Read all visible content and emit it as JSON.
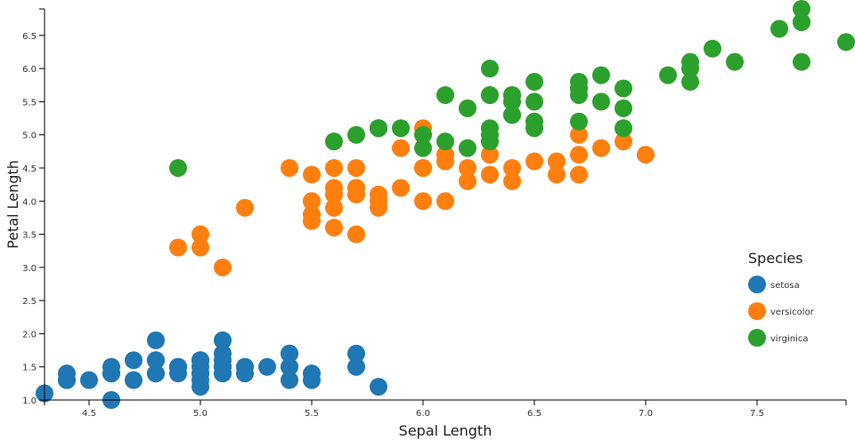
{
  "chart_data": {
    "type": "scatter",
    "xlabel": "Sepal Length",
    "ylabel": "Petal Length",
    "xlim": [
      4.3,
      7.9
    ],
    "ylim": [
      1.0,
      6.9
    ],
    "xticks": [
      "4.5",
      "5.0",
      "5.5",
      "6.0",
      "6.5",
      "7.0",
      "7.5"
    ],
    "yticks": [
      "1.0",
      "1.5",
      "2.0",
      "2.5",
      "3.0",
      "3.5",
      "4.0",
      "4.5",
      "5.0",
      "5.5",
      "6.0",
      "6.5"
    ],
    "grid": false,
    "legend": {
      "title": "Species",
      "placement": "right"
    },
    "series": [
      {
        "name": "setosa",
        "color": "#1f77b4",
        "points": [
          [
            5.1,
            1.4
          ],
          [
            4.9,
            1.4
          ],
          [
            4.7,
            1.3
          ],
          [
            4.6,
            1.5
          ],
          [
            5.0,
            1.4
          ],
          [
            5.4,
            1.7
          ],
          [
            4.6,
            1.4
          ],
          [
            5.0,
            1.5
          ],
          [
            4.4,
            1.4
          ],
          [
            4.9,
            1.5
          ],
          [
            5.4,
            1.5
          ],
          [
            4.8,
            1.6
          ],
          [
            4.8,
            1.4
          ],
          [
            4.3,
            1.1
          ],
          [
            5.8,
            1.2
          ],
          [
            5.7,
            1.5
          ],
          [
            5.4,
            1.3
          ],
          [
            5.1,
            1.4
          ],
          [
            5.7,
            1.7
          ],
          [
            5.1,
            1.5
          ],
          [
            5.4,
            1.7
          ],
          [
            5.1,
            1.5
          ],
          [
            4.6,
            1.0
          ],
          [
            5.1,
            1.7
          ],
          [
            4.8,
            1.9
          ],
          [
            5.0,
            1.6
          ],
          [
            5.0,
            1.6
          ],
          [
            5.2,
            1.5
          ],
          [
            5.2,
            1.4
          ],
          [
            4.7,
            1.6
          ],
          [
            4.8,
            1.6
          ],
          [
            5.4,
            1.5
          ],
          [
            5.2,
            1.5
          ],
          [
            5.5,
            1.4
          ],
          [
            4.9,
            1.5
          ],
          [
            5.0,
            1.2
          ],
          [
            5.5,
            1.3
          ],
          [
            4.9,
            1.5
          ],
          [
            4.4,
            1.3
          ],
          [
            5.1,
            1.5
          ],
          [
            5.0,
            1.3
          ],
          [
            4.5,
            1.3
          ],
          [
            4.4,
            1.3
          ],
          [
            5.0,
            1.6
          ],
          [
            5.1,
            1.9
          ],
          [
            4.8,
            1.4
          ],
          [
            5.1,
            1.6
          ],
          [
            4.6,
            1.4
          ],
          [
            5.3,
            1.5
          ],
          [
            5.0,
            1.4
          ]
        ]
      },
      {
        "name": "versicolor",
        "color": "#ff7f0e",
        "points": [
          [
            7.0,
            4.7
          ],
          [
            6.4,
            4.5
          ],
          [
            6.9,
            4.9
          ],
          [
            5.5,
            4.0
          ],
          [
            6.5,
            4.6
          ],
          [
            5.7,
            4.5
          ],
          [
            6.3,
            4.7
          ],
          [
            4.9,
            3.3
          ],
          [
            6.6,
            4.6
          ],
          [
            5.2,
            3.9
          ],
          [
            5.0,
            3.5
          ],
          [
            5.9,
            4.2
          ],
          [
            6.0,
            4.0
          ],
          [
            6.1,
            4.7
          ],
          [
            5.6,
            3.6
          ],
          [
            6.7,
            4.4
          ],
          [
            5.6,
            4.5
          ],
          [
            5.8,
            4.1
          ],
          [
            6.2,
            4.5
          ],
          [
            5.6,
            3.9
          ],
          [
            5.9,
            4.8
          ],
          [
            6.1,
            4.0
          ],
          [
            6.3,
            4.9
          ],
          [
            6.1,
            4.7
          ],
          [
            6.4,
            4.3
          ],
          [
            6.6,
            4.4
          ],
          [
            6.8,
            4.8
          ],
          [
            6.7,
            5.0
          ],
          [
            6.0,
            4.5
          ],
          [
            5.7,
            3.5
          ],
          [
            5.5,
            3.8
          ],
          [
            5.5,
            3.7
          ],
          [
            5.8,
            3.9
          ],
          [
            6.0,
            5.1
          ],
          [
            5.4,
            4.5
          ],
          [
            6.0,
            4.5
          ],
          [
            6.7,
            4.7
          ],
          [
            6.3,
            4.4
          ],
          [
            5.6,
            4.1
          ],
          [
            5.5,
            4.0
          ],
          [
            5.5,
            4.4
          ],
          [
            6.1,
            4.6
          ],
          [
            5.8,
            4.0
          ],
          [
            5.0,
            3.3
          ],
          [
            5.6,
            4.2
          ],
          [
            5.7,
            4.2
          ],
          [
            5.7,
            4.2
          ],
          [
            6.2,
            4.3
          ],
          [
            5.1,
            3.0
          ],
          [
            5.7,
            4.1
          ]
        ]
      },
      {
        "name": "virginica",
        "color": "#2ca02c",
        "points": [
          [
            6.3,
            6.0
          ],
          [
            5.8,
            5.1
          ],
          [
            7.1,
            5.9
          ],
          [
            6.3,
            5.6
          ],
          [
            6.5,
            5.8
          ],
          [
            7.6,
            6.6
          ],
          [
            4.9,
            4.5
          ],
          [
            7.3,
            6.3
          ],
          [
            6.7,
            5.8
          ],
          [
            7.2,
            6.1
          ],
          [
            6.5,
            5.1
          ],
          [
            6.4,
            5.3
          ],
          [
            6.8,
            5.5
          ],
          [
            5.7,
            5.0
          ],
          [
            5.8,
            5.1
          ],
          [
            6.4,
            5.3
          ],
          [
            6.5,
            5.5
          ],
          [
            7.7,
            6.7
          ],
          [
            7.7,
            6.9
          ],
          [
            6.0,
            5.0
          ],
          [
            6.9,
            5.7
          ],
          [
            5.6,
            4.9
          ],
          [
            7.7,
            6.7
          ],
          [
            6.3,
            4.9
          ],
          [
            6.7,
            5.7
          ],
          [
            7.2,
            6.0
          ],
          [
            6.2,
            4.8
          ],
          [
            6.1,
            4.9
          ],
          [
            6.4,
            5.6
          ],
          [
            7.2,
            5.8
          ],
          [
            7.4,
            6.1
          ],
          [
            7.9,
            6.4
          ],
          [
            6.4,
            5.6
          ],
          [
            6.3,
            5.1
          ],
          [
            6.1,
            5.6
          ],
          [
            7.7,
            6.1
          ],
          [
            6.3,
            5.6
          ],
          [
            6.4,
            5.5
          ],
          [
            6.0,
            4.8
          ],
          [
            6.9,
            5.4
          ],
          [
            6.7,
            5.6
          ],
          [
            6.9,
            5.1
          ],
          [
            5.8,
            5.1
          ],
          [
            6.8,
            5.9
          ],
          [
            6.7,
            5.7
          ],
          [
            6.7,
            5.2
          ],
          [
            6.3,
            5.0
          ],
          [
            6.5,
            5.2
          ],
          [
            6.2,
            5.4
          ],
          [
            5.9,
            5.1
          ]
        ]
      }
    ]
  }
}
